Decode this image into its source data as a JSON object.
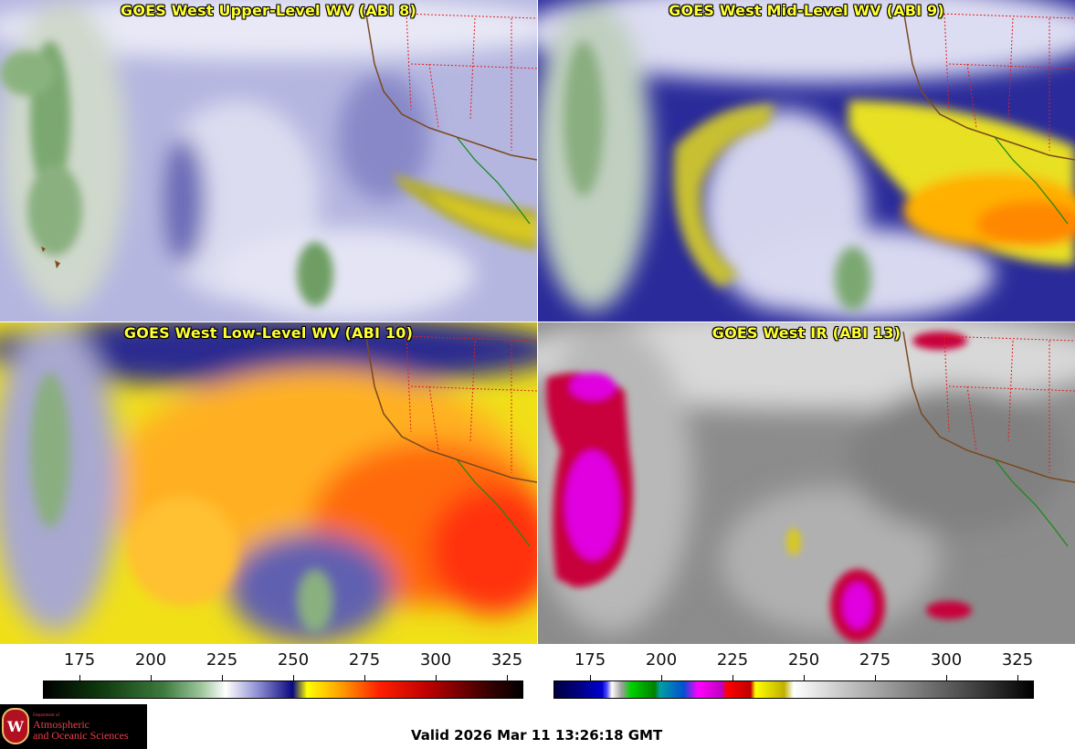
{
  "panels": [
    {
      "title": "GOES West Upper-Level WV (ABI 8)"
    },
    {
      "title": "GOES West Mid-Level WV (ABI 9)"
    },
    {
      "title": "GOES West Low-Level WV (ABI 10)"
    },
    {
      "title": "GOES West IR (ABI 13)"
    }
  ],
  "colorbars": {
    "wv_ticks": [
      "175",
      "200",
      "225",
      "250",
      "275",
      "300",
      "325"
    ],
    "ir_ticks": [
      "175",
      "200",
      "225",
      "250",
      "275",
      "300",
      "325"
    ]
  },
  "colors": {
    "wv_scale": [
      "#000000",
      "#0f3a0f",
      "#3d7a3d",
      "#9fc79f",
      "#ffffff",
      "#8a8ad0",
      "#0a0a80",
      "#ffff00",
      "#ffa000",
      "#ff2000",
      "#c00000",
      "#400000"
    ],
    "ir_scale": [
      "#000040",
      "#0000d0",
      "#ffffff",
      "#00d000",
      "#00a0a0",
      "#0050d0",
      "#ff00ff",
      "#ff0000",
      "#ffff00",
      "#ffffff",
      "#808080",
      "#000000"
    ],
    "title_text": "#ffff33"
  },
  "logo": {
    "dept": "Department of",
    "line1": "Atmospheric",
    "line2": "and Oceanic Sciences",
    "seal_letter": "W"
  },
  "valid_time": "Valid 2026 Mar 11 13:26:18 GMT"
}
